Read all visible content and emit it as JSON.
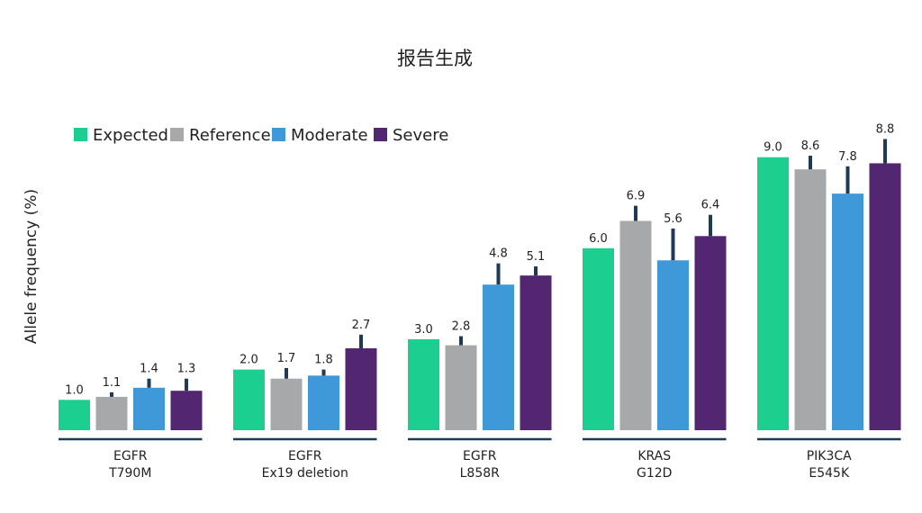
{
  "chart_data": {
    "type": "bar",
    "title": "报告生成",
    "xlabel": "",
    "ylabel": "Allele frequency (%)",
    "ylim": [
      0,
      10
    ],
    "grid": false,
    "legend_position": "top-left",
    "categories": [
      [
        "EGFR",
        "T790M"
      ],
      [
        "EGFR",
        "Ex19 deletion"
      ],
      [
        "EGFR",
        "L858R"
      ],
      [
        "KRAS",
        "G12D"
      ],
      [
        "PIK3CA",
        "E545K"
      ]
    ],
    "series": [
      {
        "name": "Expected",
        "color": "#1ccf91",
        "values": [
          1.0,
          2.0,
          3.0,
          6.0,
          9.0
        ],
        "value_labels": [
          "1.0",
          "2.0",
          "3.0",
          "6.0",
          "9.0"
        ],
        "error": [
          0.0,
          0.0,
          0.0,
          0.0,
          0.0
        ]
      },
      {
        "name": "Reference",
        "color": "#a7a8aa",
        "values": [
          1.1,
          1.7,
          2.8,
          6.9,
          8.6
        ],
        "value_labels": [
          "1.1",
          "1.7",
          "2.8",
          "6.9",
          "8.6"
        ],
        "error": [
          0.15,
          0.35,
          0.3,
          0.5,
          0.45
        ]
      },
      {
        "name": "Moderate",
        "color": "#3f98d8",
        "values": [
          1.4,
          1.8,
          4.8,
          5.6,
          7.8
        ],
        "value_labels": [
          "1.4",
          "1.8",
          "4.8",
          "5.6",
          "7.8"
        ],
        "error": [
          0.3,
          0.2,
          0.7,
          1.05,
          0.9
        ]
      },
      {
        "name": "Severe",
        "color": "#522670",
        "values": [
          1.3,
          2.7,
          5.1,
          6.4,
          8.8
        ],
        "value_labels": [
          "1.3",
          "2.7",
          "5.1",
          "6.4",
          "8.8"
        ],
        "error": [
          0.4,
          0.45,
          0.3,
          0.7,
          0.8
        ]
      }
    ],
    "error_bar_color": "#1e3a55",
    "axis_color": "#1e3a55"
  }
}
